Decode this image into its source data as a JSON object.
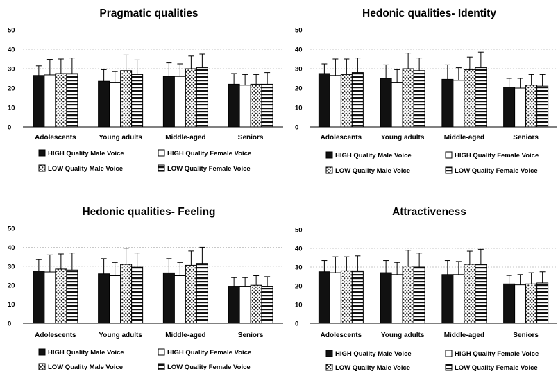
{
  "chart_data": [
    {
      "type": "bar",
      "title": "Pragmatic qualities",
      "categories": [
        "Adolescents",
        "Young adults",
        "Middle-aged",
        "Seniors"
      ],
      "ylim": [
        0,
        50
      ],
      "yticks": [
        "0",
        "10",
        "20",
        "30",
        "40",
        "50"
      ],
      "series": [
        {
          "name": "HIGH Quality Male Voice",
          "values": [
            26.5,
            23.5,
            26.0,
            22.0
          ],
          "errors": [
            5.0,
            6.0,
            7.0,
            5.5
          ]
        },
        {
          "name": "HIGH Quality Female Voice",
          "values": [
            26.8,
            23.0,
            26.0,
            21.5
          ],
          "errors": [
            8.0,
            5.5,
            6.5,
            5.5
          ]
        },
        {
          "name": "LOW Quality Male Voice",
          "values": [
            27.5,
            29.0,
            30.0,
            22.0
          ],
          "errors": [
            7.5,
            8.0,
            6.5,
            5.0
          ]
        },
        {
          "name": "LOW Quality Female Voice",
          "values": [
            27.5,
            27.0,
            30.5,
            22.0
          ],
          "errors": [
            8.0,
            7.5,
            7.0,
            6.0
          ]
        }
      ]
    },
    {
      "type": "bar",
      "title": "Hedonic qualities- Identity",
      "categories": [
        "Adolescents",
        "Young adults",
        "Middle-aged",
        "Seniors"
      ],
      "ylim": [
        0,
        50
      ],
      "yticks": [
        "0",
        "10",
        "20",
        "30",
        "40",
        "50"
      ],
      "series": [
        {
          "name": "HIGH Quality Male Voice",
          "values": [
            27.5,
            25.0,
            24.5,
            20.5
          ],
          "errors": [
            5.0,
            7.0,
            7.5,
            4.5
          ]
        },
        {
          "name": "HIGH Quality Female Voice",
          "values": [
            26.5,
            23.0,
            24.0,
            20.0
          ],
          "errors": [
            8.5,
            6.5,
            6.5,
            5.0
          ]
        },
        {
          "name": "LOW Quality Male Voice",
          "values": [
            27.0,
            30.0,
            29.5,
            21.5
          ],
          "errors": [
            8.0,
            8.0,
            6.5,
            5.5
          ]
        },
        {
          "name": "LOW Quality Female Voice",
          "values": [
            28.0,
            29.0,
            30.5,
            21.0
          ],
          "errors": [
            7.5,
            6.5,
            8.0,
            6.0
          ]
        }
      ]
    },
    {
      "type": "bar",
      "title": "Hedonic qualities- Feeling",
      "categories": [
        "Adolescents",
        "Young adults",
        "Middle-aged",
        "Seniors"
      ],
      "ylim": [
        0,
        50
      ],
      "yticks": [
        "0",
        "10",
        "20",
        "30",
        "40",
        "50"
      ],
      "series": [
        {
          "name": "HIGH Quality Male Voice",
          "values": [
            27.5,
            26.0,
            26.5,
            19.5
          ],
          "errors": [
            6.0,
            8.0,
            7.5,
            4.5
          ]
        },
        {
          "name": "HIGH Quality Female Voice",
          "values": [
            27.0,
            25.0,
            25.0,
            19.5
          ],
          "errors": [
            9.0,
            7.0,
            7.0,
            4.5
          ]
        },
        {
          "name": "LOW Quality Male Voice",
          "values": [
            28.5,
            31.0,
            30.5,
            20.0
          ],
          "errors": [
            8.0,
            8.5,
            7.5,
            5.0
          ]
        },
        {
          "name": "LOW Quality Female Voice",
          "values": [
            28.0,
            29.5,
            31.5,
            19.5
          ],
          "errors": [
            9.0,
            7.5,
            8.5,
            5.0
          ]
        }
      ]
    },
    {
      "type": "bar",
      "title": "Attractiveness",
      "categories": [
        "Adolescents",
        "Young adults",
        "Middle-aged",
        "Seniors"
      ],
      "ylim": [
        0,
        50
      ],
      "yticks": [
        "0",
        "10",
        "20",
        "30",
        "40",
        "50"
      ],
      "series": [
        {
          "name": "HIGH Quality Male Voice",
          "values": [
            27.5,
            27.0,
            26.0,
            21.0
          ],
          "errors": [
            6.0,
            6.5,
            7.5,
            4.5
          ]
        },
        {
          "name": "HIGH Quality Female Voice",
          "values": [
            27.0,
            26.0,
            26.0,
            20.5
          ],
          "errors": [
            8.5,
            6.5,
            7.0,
            5.5
          ]
        },
        {
          "name": "LOW Quality Male Voice",
          "values": [
            28.0,
            30.5,
            31.5,
            21.0
          ],
          "errors": [
            7.5,
            8.5,
            7.0,
            6.0
          ]
        },
        {
          "name": "LOW Quality Female Voice",
          "values": [
            28.0,
            30.0,
            31.5,
            21.5
          ],
          "errors": [
            8.0,
            7.5,
            8.0,
            6.0
          ]
        }
      ]
    }
  ]
}
